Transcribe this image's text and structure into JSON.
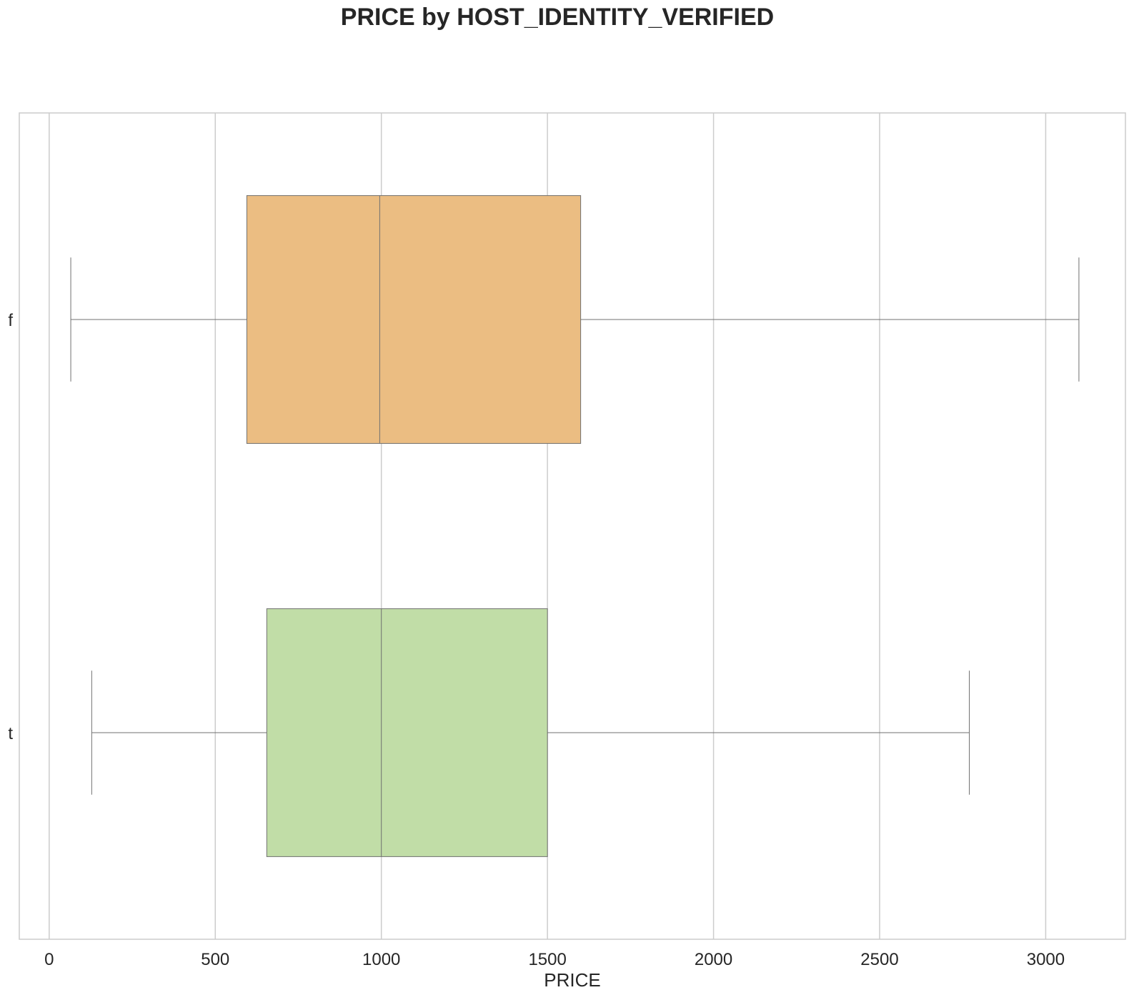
{
  "chart_data": {
    "type": "box",
    "title": "PRICE by HOST_IDENTITY_VERIFIED",
    "xlabel": "PRICE",
    "ylabel": "",
    "orientation": "horizontal",
    "xlim": [
      -90,
      3240
    ],
    "xticks": [
      0,
      500,
      1000,
      1500,
      2000,
      2500,
      3000
    ],
    "grid": true,
    "categories": [
      "f",
      "t"
    ],
    "boxes": [
      {
        "category": "f",
        "whisker_low": 65,
        "q1": 595,
        "median": 995,
        "q3": 1600,
        "whisker_high": 3100,
        "color": "#ebbd82"
      },
      {
        "category": "t",
        "whisker_low": 128,
        "q1": 655,
        "median": 1000,
        "q3": 1500,
        "whisker_high": 2770,
        "color": "#c1dda7"
      }
    ]
  },
  "colors": {
    "grid": "#cccccc",
    "frame": "#cccccc",
    "box_edge": "#707070",
    "text": "#262626"
  }
}
